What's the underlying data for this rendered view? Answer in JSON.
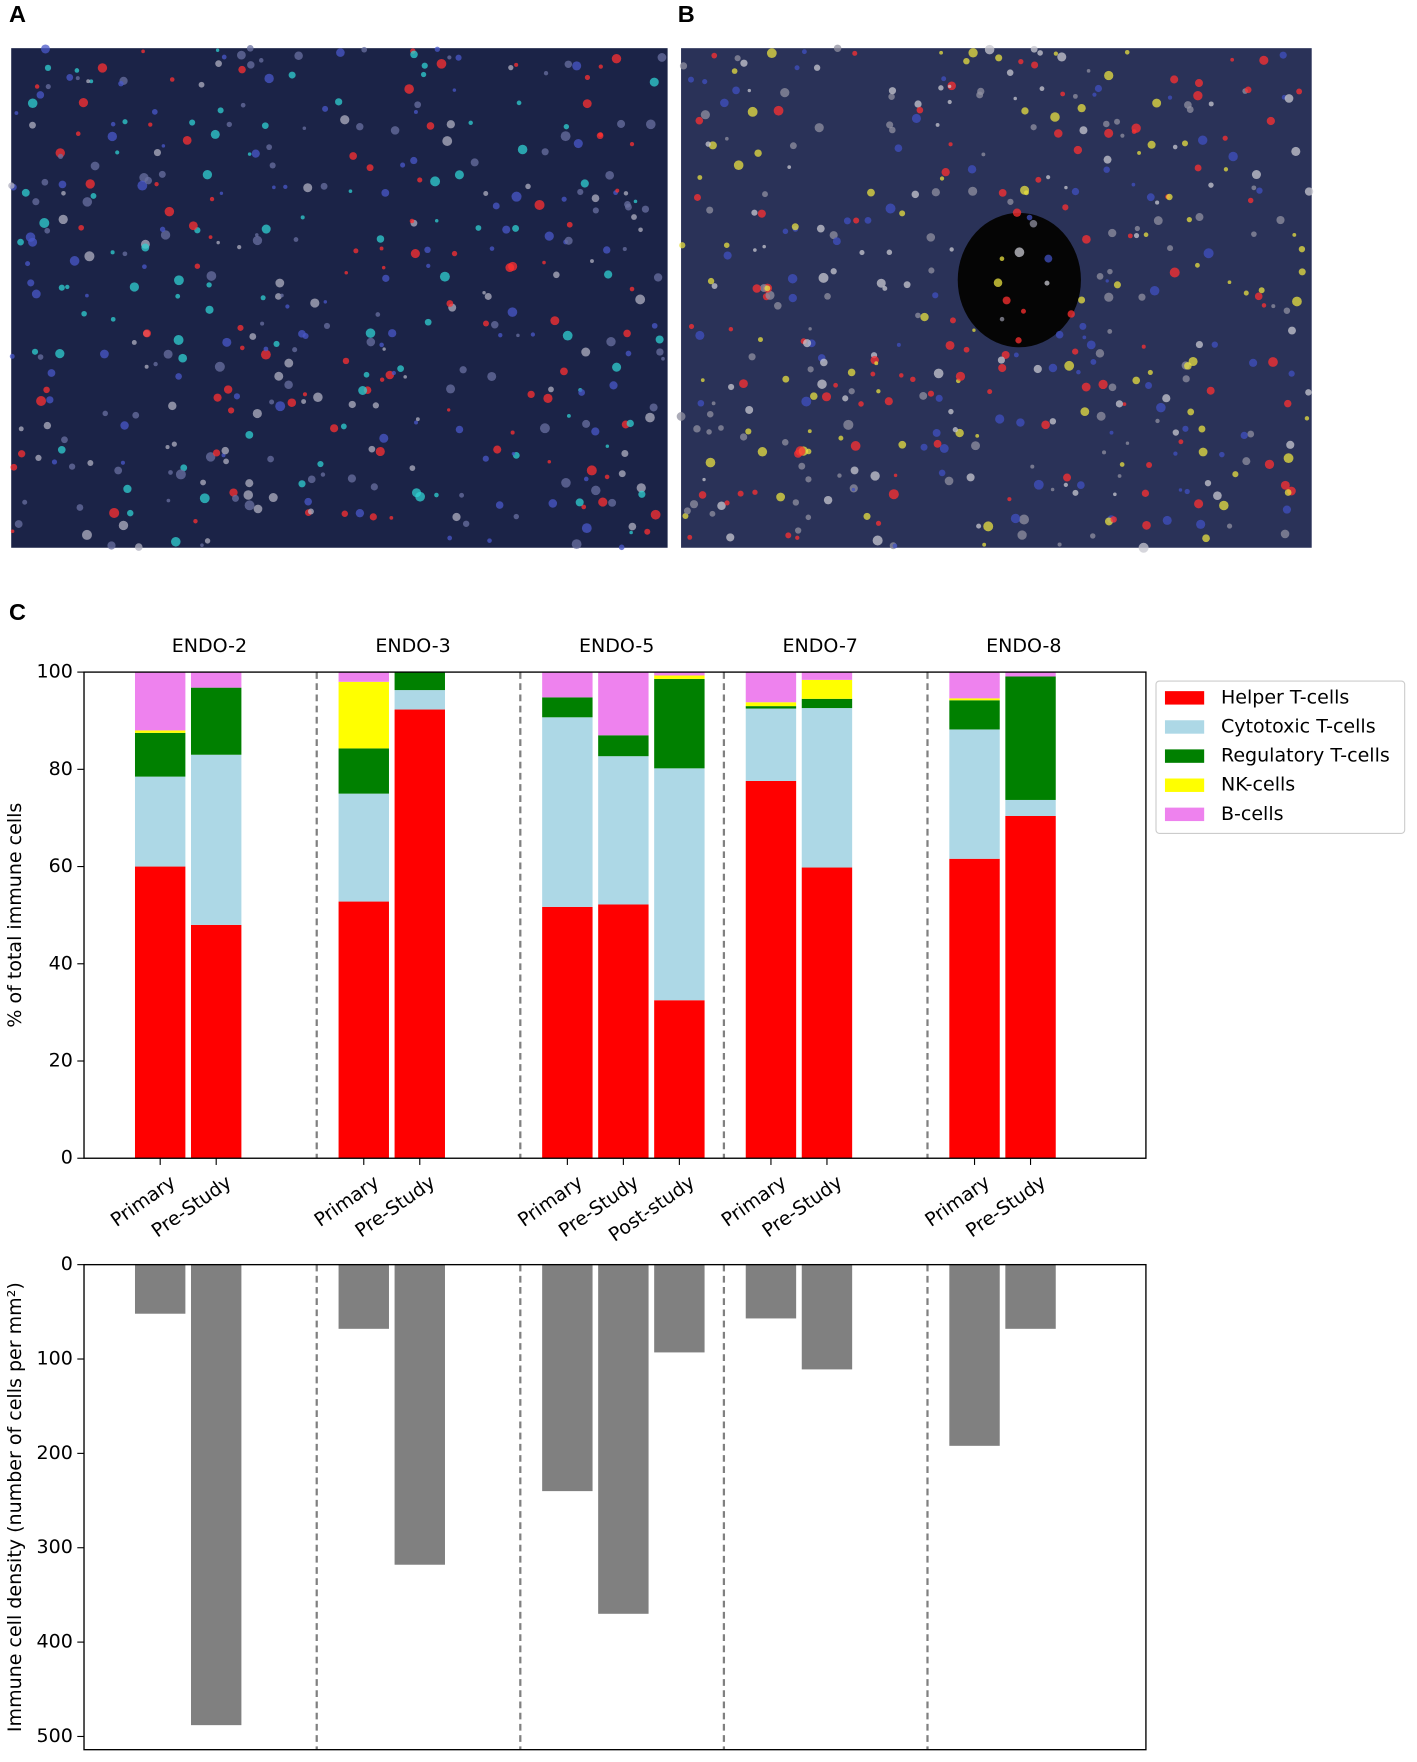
{
  "panels": [
    "A",
    "B",
    "C"
  ],
  "chart_data": [
    {
      "type": "stacked_bar",
      "ylabel": "% of total immune cells",
      "groups": [
        {
          "label": "ENDO-2",
          "categories": [
            "Primary",
            "Pre-Study"
          ]
        },
        {
          "label": "ENDO-3",
          "categories": [
            "Primary",
            "Pre-Study"
          ]
        },
        {
          "label": "ENDO-5",
          "categories": [
            "Primary",
            "Pre-Study",
            "Post-study"
          ]
        },
        {
          "label": "ENDO-7",
          "categories": [
            "Primary",
            "Pre-Study"
          ]
        },
        {
          "label": "ENDO-8",
          "categories": [
            "Primary",
            "Pre-Study"
          ]
        }
      ],
      "series": [
        {
          "name": "Helper T-cells",
          "color": "#ff0000",
          "values": [
            60,
            48,
            52.8,
            92.3,
            51.7,
            52.2,
            32.5,
            77.6,
            59.8,
            61.6,
            70.4
          ]
        },
        {
          "name": "Cytotoxic T-cells",
          "color": "#add8e6",
          "values": [
            18.5,
            35,
            22.2,
            4,
            39,
            30.5,
            47.7,
            14.9,
            32.8,
            26.6,
            3.3
          ]
        },
        {
          "name": "Regulatory T-cells",
          "color": "#008000",
          "values": [
            9,
            13.8,
            9.3,
            3.7,
            4.1,
            4.3,
            18.4,
            0.5,
            1.9,
            6,
            25.4
          ]
        },
        {
          "name": "NK-cells",
          "color": "#ffff00",
          "values": [
            0.5,
            0,
            13.7,
            0,
            0,
            0,
            0.7,
            0.8,
            3.9,
            0.4,
            0
          ]
        },
        {
          "name": "B-cells",
          "color": "#ee82ee",
          "values": [
            12,
            3.2,
            2,
            0,
            5.2,
            13,
            0.7,
            6.2,
            1.6,
            5.4,
            0.9
          ]
        }
      ],
      "ylim": [
        0,
        100
      ],
      "yticks": [
        0,
        20,
        40,
        60,
        80,
        100
      ],
      "legend": "outside-right"
    },
    {
      "type": "bar",
      "ylabel": "Immune cell density (number of cells per mm²)",
      "values": [
        52,
        488,
        68,
        318,
        240,
        370,
        93,
        57,
        111,
        192,
        68
      ],
      "color": "#808080",
      "ylim": [
        0,
        514
      ],
      "yticks": [
        0,
        100,
        200,
        300,
        400,
        500
      ],
      "invert_y": true
    }
  ]
}
